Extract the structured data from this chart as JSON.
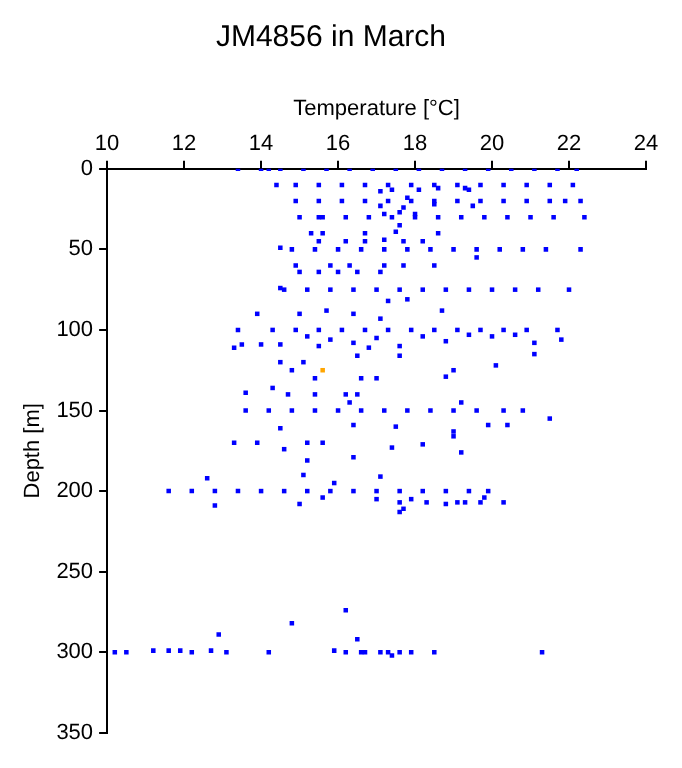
{
  "chart_data": {
    "type": "scatter",
    "title": "JM4856 in March",
    "xlabel": "Temperature [°C]",
    "ylabel": "Depth [m]",
    "xlim": [
      10,
      24
    ],
    "xticks": [
      10,
      12,
      14,
      16,
      18,
      20,
      22,
      24
    ],
    "ylim": [
      350,
      0
    ],
    "yticks": [
      0,
      50,
      100,
      150,
      200,
      250,
      300,
      350
    ],
    "grid": false,
    "legend": false,
    "marker": "square",
    "series": [
      {
        "color": "#0000ff",
        "x": [
          13.4,
          14.0,
          14.2,
          14.5,
          15.1,
          15.7,
          16.3,
          16.9,
          17.5,
          18.1,
          18.7,
          19.3,
          19.9,
          20.5,
          21.1,
          21.7,
          22.2,
          14.4,
          14.9,
          15.5,
          16.1,
          16.7,
          17.3,
          17.9,
          18.5,
          19.1,
          19.7,
          20.3,
          20.9,
          21.5,
          22.1,
          17.1,
          17.4,
          18.1,
          18.6,
          19.4,
          19.3,
          14.9,
          15.5,
          16.1,
          16.7,
          17.3,
          17.9,
          18.5,
          19.1,
          19.7,
          20.3,
          20.9,
          21.5,
          22.3,
          17.8,
          17.1,
          17.7,
          18.5,
          19.5,
          21.9,
          15.0,
          15.6,
          16.2,
          16.8,
          17.4,
          18.0,
          18.6,
          19.2,
          19.8,
          20.4,
          21.0,
          21.6,
          22.4,
          15.5,
          17.2,
          17.6,
          18.0,
          17.6,
          15.3,
          15.6,
          16.7,
          17.5,
          18.6,
          15.5,
          16.2,
          16.7,
          17.2,
          17.7,
          18.2,
          14.5,
          14.8,
          15.4,
          16.0,
          16.6,
          17.2,
          17.8,
          18.4,
          19.0,
          19.6,
          20.2,
          20.8,
          21.4,
          22.3
        ],
        "values": [
          0,
          0,
          0,
          0,
          0,
          0,
          0,
          0,
          0,
          0,
          0,
          0,
          0,
          0,
          0,
          0,
          0,
          10,
          10,
          10,
          10,
          10,
          10,
          10,
          10,
          10,
          10,
          10,
          10,
          10,
          10,
          14,
          13,
          13,
          12,
          13,
          12,
          20,
          20,
          20,
          20,
          20,
          20,
          20,
          20,
          20,
          20,
          20,
          20,
          20,
          18,
          23,
          24,
          22,
          23,
          20,
          30,
          30,
          30,
          30,
          30,
          30,
          30,
          30,
          30,
          30,
          30,
          30,
          30,
          30,
          28,
          27,
          28,
          35,
          40,
          40,
          40,
          39,
          40,
          45,
          45,
          45,
          44,
          45,
          45,
          49,
          50,
          50,
          50,
          50,
          50,
          50,
          50,
          50,
          50,
          50,
          50,
          50,
          50
        ]
      },
      {
        "color": "#0000ff",
        "x": [
          19.6,
          14.9,
          15.8,
          16.3,
          17.2,
          17.7,
          18.5,
          15.0,
          15.5,
          16.0,
          16.5,
          17.1,
          14.5,
          14.6,
          15.2,
          15.8,
          16.4,
          17.0,
          17.6,
          18.2,
          18.8,
          19.4,
          20.0,
          20.6,
          21.2,
          22.0,
          17.3,
          17.8,
          18.7,
          15.7,
          15.0,
          16.4,
          17.1,
          13.9,
          13.4,
          14.3,
          14.9,
          15.5,
          16.1,
          16.7,
          17.3,
          17.9,
          18.5,
          19.1,
          19.7,
          20.3,
          20.9,
          21.7,
          15.2,
          15.8,
          16.4,
          17.0,
          17.6,
          18.2,
          18.8,
          19.4,
          20.0,
          20.6,
          15.5,
          16.8,
          13.5,
          14.0,
          14.5,
          21.8,
          21.1,
          13.3,
          14.5,
          15.1,
          16.5,
          17.6,
          20.1,
          21.1,
          14.8,
          15.4,
          16.6,
          17.0,
          18.8,
          19.0,
          14.3,
          13.6,
          14.7,
          15.4,
          16.2,
          16.5,
          16.3,
          19.2
        ],
        "values": [
          55,
          60,
          60,
          60,
          60,
          60,
          60,
          64,
          64,
          64,
          64,
          64,
          74,
          75,
          75,
          75,
          75,
          75,
          75,
          75,
          75,
          75,
          75,
          75,
          75,
          75,
          82,
          81,
          88,
          88,
          90,
          90,
          93,
          90,
          100,
          100,
          100,
          100,
          100,
          100,
          100,
          100,
          100,
          100,
          100,
          100,
          100,
          100,
          104,
          106,
          108,
          105,
          110,
          104,
          107,
          103,
          104,
          103,
          110,
          111,
          109,
          109,
          109,
          106,
          108,
          111,
          120,
          120,
          116,
          116,
          122,
          115,
          125,
          130,
          130,
          130,
          129,
          125,
          136,
          139,
          140,
          140,
          140,
          140,
          145,
          145
        ]
      },
      {
        "color": "#0000ff",
        "x": [
          13.6,
          14.2,
          14.8,
          15.4,
          16.0,
          16.6,
          17.2,
          17.8,
          18.4,
          19.0,
          19.6,
          20.3,
          20.8,
          21.5,
          20.4,
          19.9,
          14.5,
          16.4,
          17.5,
          19.0,
          19.0,
          19.2,
          17.4,
          18.2,
          14.6,
          13.3,
          13.9,
          15.2,
          15.6,
          15.2,
          16.4,
          15.1,
          17.1,
          15.9,
          12.6,
          12.8,
          15.0,
          15.6,
          11.6,
          12.2,
          12.8,
          13.4,
          14.0,
          14.6,
          15.2,
          15.8,
          16.4,
          17.0,
          17.6,
          18.2,
          18.8,
          19.4,
          19.9,
          17.0,
          17.6,
          17.7,
          17.6,
          17.9,
          18.3,
          18.8,
          19.1,
          19.3,
          19.7,
          20.3,
          19.8
        ],
        "values": [
          150,
          150,
          150,
          150,
          150,
          150,
          150,
          150,
          150,
          150,
          150,
          150,
          150,
          155,
          159,
          159,
          161,
          159,
          160,
          163,
          166,
          176,
          173,
          171,
          174,
          170,
          170,
          170,
          170,
          181,
          179,
          190,
          191,
          195,
          192,
          209,
          208,
          204,
          200,
          200,
          200,
          200,
          200,
          200,
          200,
          200,
          200,
          200,
          200,
          200,
          200,
          200,
          200,
          205,
          207,
          211,
          213,
          205,
          207,
          208,
          207,
          207,
          207,
          207,
          204
        ]
      },
      {
        "color": "#0000ff",
        "x": [
          10.2,
          10.5,
          11.2,
          11.5,
          11.6,
          11.9,
          12.2,
          12.7,
          13.1,
          14.2,
          15.9,
          16.2,
          16.6,
          16.7,
          17.1,
          17.3,
          17.4,
          17.6,
          17.9,
          18.5,
          21.3,
          12.9,
          14.8,
          16.2,
          16.5
        ],
        "values": [
          300,
          300,
          299,
          null,
          299,
          299,
          300,
          299,
          300,
          300,
          299,
          300,
          300,
          300,
          300,
          300,
          302,
          300,
          300,
          300,
          300,
          289,
          282,
          274,
          292
        ]
      },
      {
        "color": "#ffa500",
        "x": [
          15.6
        ],
        "values": [
          125
        ]
      }
    ]
  }
}
